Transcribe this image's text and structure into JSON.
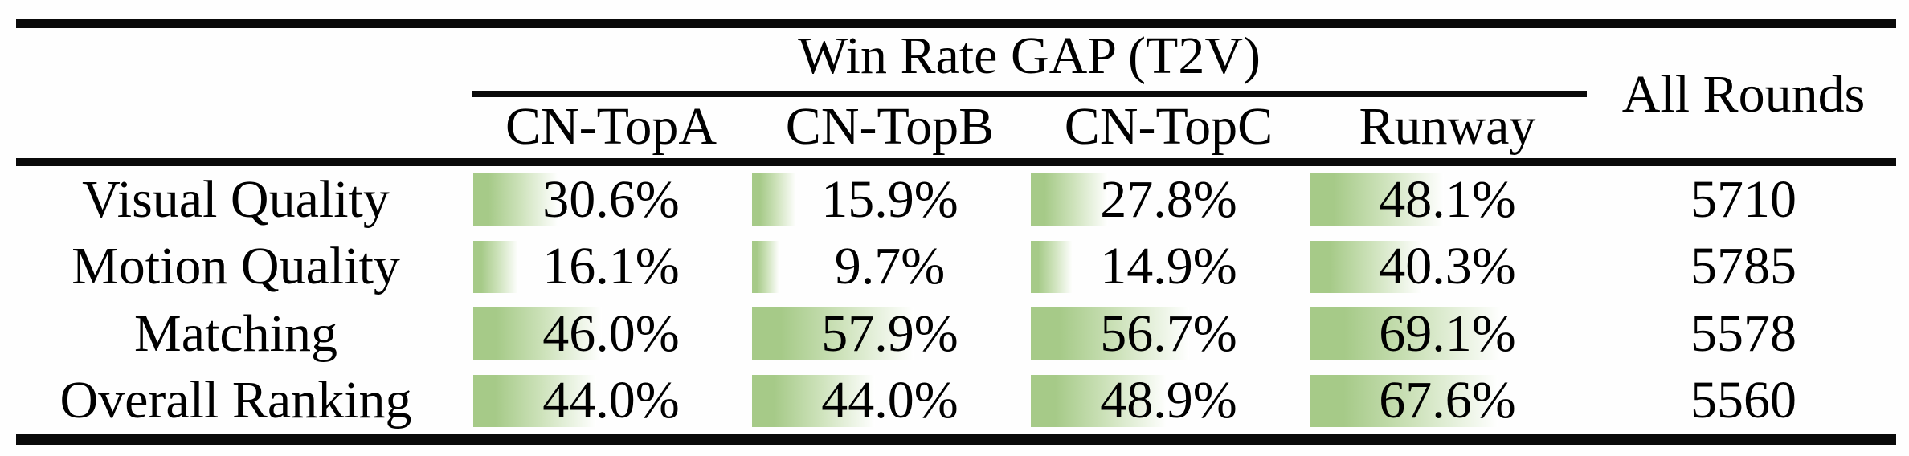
{
  "table": {
    "header": {
      "group_title": "Win Rate GAP (T2V)",
      "columns": [
        "CN-TopA",
        "CN-TopB",
        "CN-TopC",
        "Runway"
      ],
      "all_rounds_label": "All Rounds"
    },
    "rows": [
      {
        "label": "Visual Quality",
        "values": [
          "30.6%",
          "15.9%",
          "27.8%",
          "48.1%"
        ],
        "all_rounds": "5710"
      },
      {
        "label": "Motion Quality",
        "values": [
          "16.1%",
          "9.7%",
          "14.9%",
          "40.3%"
        ],
        "all_rounds": "5785"
      },
      {
        "label": "Matching",
        "values": [
          "46.0%",
          "57.9%",
          "56.7%",
          "69.1%"
        ],
        "all_rounds": "5578"
      },
      {
        "label": "Overall Ranking",
        "values": [
          "44.0%",
          "44.0%",
          "48.9%",
          "67.6%"
        ],
        "all_rounds": "5560"
      }
    ],
    "bar_color": "#a6ca88",
    "bar_fade_color": "#ffffff",
    "rule_color": "#0a0a0a"
  }
}
